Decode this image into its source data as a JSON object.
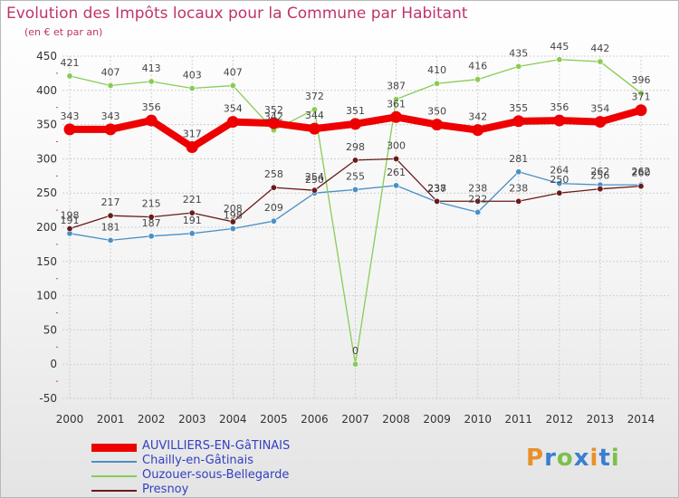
{
  "title": "Evolution des Impôts locaux pour la Commune par Habitant",
  "subtitle": "(en € et par an)",
  "logo": {
    "text": "Proxiti",
    "colors": [
      "#e8902a",
      "#3a7fd0",
      "#7cc04a",
      "#3a7fd0",
      "#e8902a",
      "#3a7fd0",
      "#7cc04a"
    ]
  },
  "chart_data": {
    "type": "line",
    "categories": [
      "2000",
      "2001",
      "2002",
      "2003",
      "2004",
      "2005",
      "2006",
      "2007",
      "2008",
      "2009",
      "2010",
      "2011",
      "2012",
      "2013",
      "2014"
    ],
    "ylim": [
      -50,
      450
    ],
    "yticks": [
      -50,
      0,
      50,
      100,
      150,
      200,
      250,
      300,
      350,
      400,
      450
    ],
    "grid": true,
    "legend_position": "bottom",
    "series": [
      {
        "name": "AUVILLIERS-EN-GâTINAIS",
        "color": "#ee0000",
        "values": [
          343,
          343,
          356,
          317,
          354,
          352,
          344,
          351,
          361,
          350,
          342,
          355,
          356,
          354,
          371
        ]
      },
      {
        "name": "Chailly-en-Gâtinais",
        "color": "#4a90c8",
        "values": [
          191,
          181,
          187,
          191,
          198,
          209,
          250,
          255,
          261,
          237,
          222,
          281,
          264,
          262,
          262
        ]
      },
      {
        "name": "Ouzouer-sous-Bellegarde",
        "color": "#88cc55",
        "values": [
          421,
          407,
          413,
          403,
          407,
          342,
          372,
          0,
          387,
          410,
          416,
          435,
          445,
          442,
          396
        ]
      },
      {
        "name": "Presnoy",
        "color": "#6b1a1a",
        "values": [
          198,
          217,
          215,
          221,
          208,
          258,
          254,
          298,
          300,
          238,
          238,
          238,
          250,
          256,
          260
        ]
      }
    ]
  }
}
